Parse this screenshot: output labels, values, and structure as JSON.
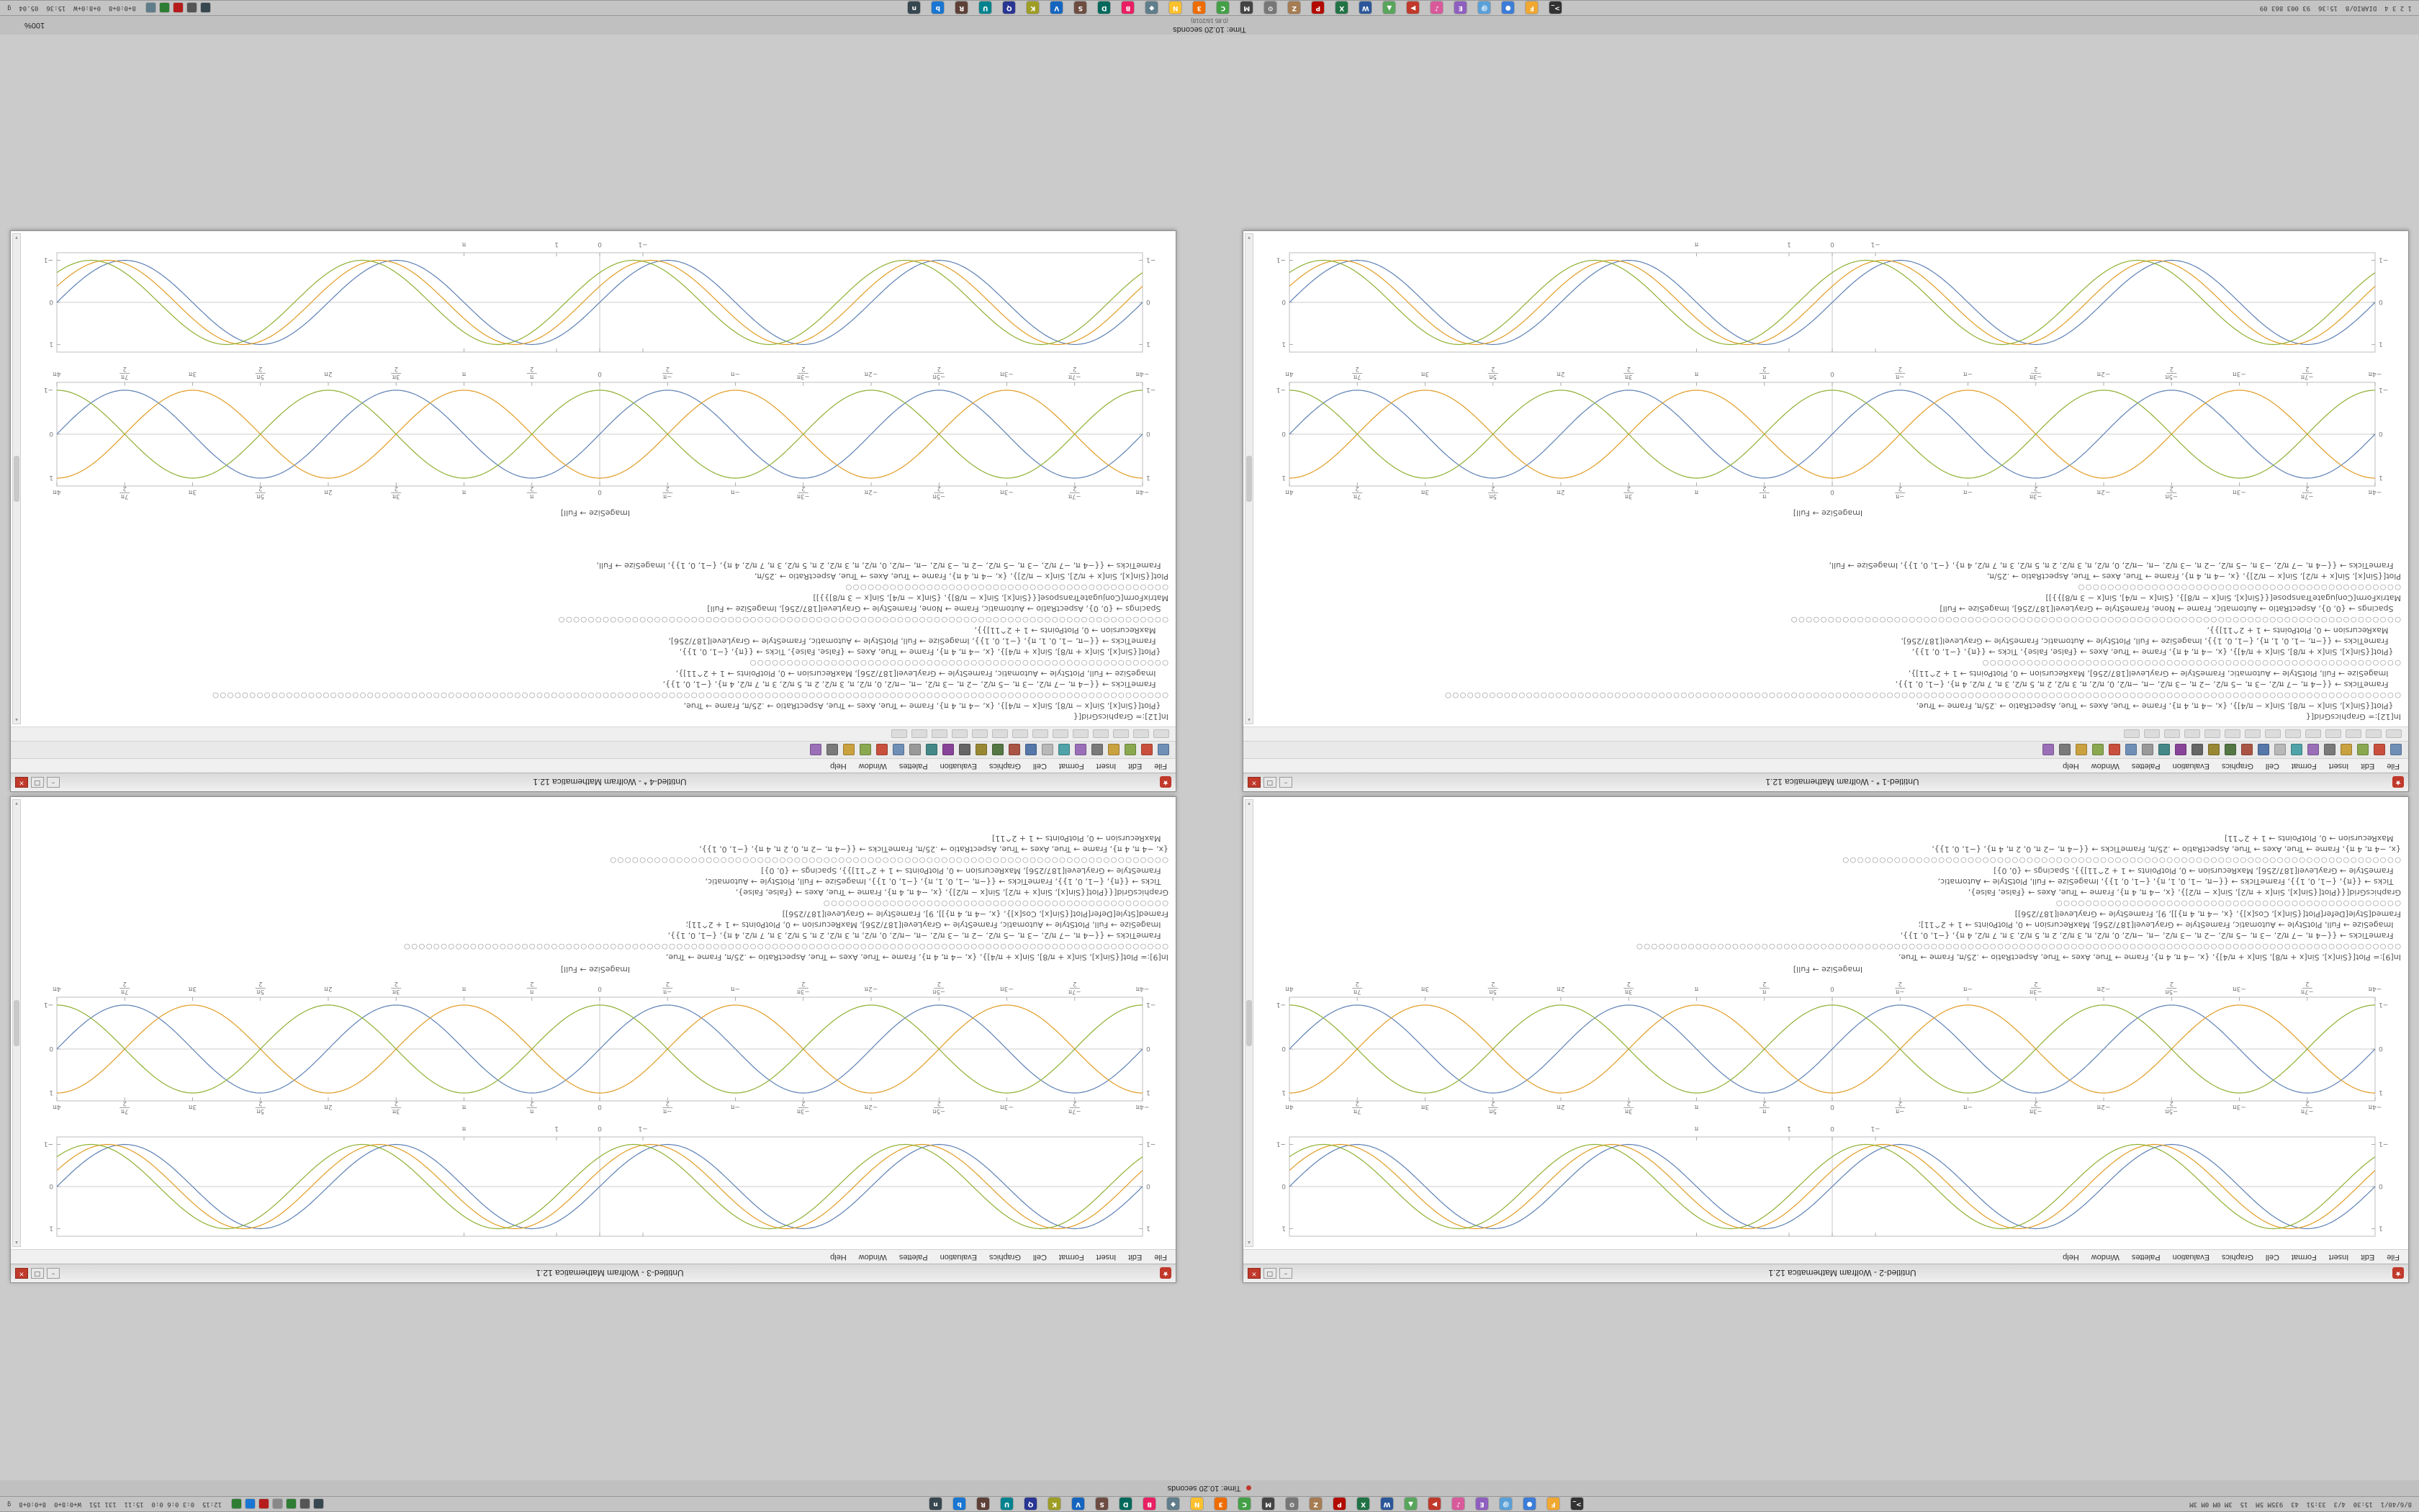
{
  "colors": {
    "accent_red": "#c0392b",
    "frame": "#bdbdbd",
    "plot_series": [
      "#5e81b5",
      "#e19c24",
      "#8fb032"
    ]
  },
  "strip_upper": {
    "label": "Time: 10.20 seconds"
  },
  "strip_lower": {
    "label": "Time: 10.20 seconds",
    "sub": "(0.85 16/2018)",
    "zoom": "100%"
  },
  "top_panel": {
    "left_status": "8/6/40/1  15:30  4/3  33:51  43  935M 5M  15  3M 0M 0M 3M",
    "right_status": "12:15  0:3 0:6 0:0  15:11  131 151  W+0:8+0  8+0:0+8  g",
    "tray": [
      {
        "name": "network",
        "color": "#37474f"
      },
      {
        "name": "volume",
        "color": "#555555"
      },
      {
        "name": "battery",
        "color": "#2e7d32"
      },
      {
        "name": "clipboard",
        "color": "#888888"
      },
      {
        "name": "updates",
        "color": "#b71c1c"
      },
      {
        "name": "bluetooth",
        "color": "#1976d2"
      },
      {
        "name": "shield",
        "color": "#2e7d32"
      }
    ]
  },
  "bottom_panel": {
    "left_status": "1 2 3 4  DIARIO/8  15:36  93 003 863 09",
    "right_status": "8+0:0+8  0+8:0+W  15:36  05.04  g",
    "tray": [
      {
        "name": "network",
        "color": "#37474f"
      },
      {
        "name": "volume",
        "color": "#555555"
      },
      {
        "name": "updates",
        "color": "#b71c1c"
      },
      {
        "name": "battery",
        "color": "#2e7d32"
      },
      {
        "name": "clock-applet",
        "color": "#607d8b"
      }
    ]
  },
  "panel_icons": [
    {
      "name": "terminal",
      "color": "#333333",
      "glyph": ">_"
    },
    {
      "name": "files",
      "color": "#f0a830",
      "glyph": "F"
    },
    {
      "name": "browser",
      "color": "#3b7dd8",
      "glyph": "●"
    },
    {
      "name": "mail",
      "color": "#5aa0d8",
      "glyph": "@"
    },
    {
      "name": "editor",
      "color": "#8f5fbf",
      "glyph": "E"
    },
    {
      "name": "music",
      "color": "#d85a9b",
      "glyph": "♪"
    },
    {
      "name": "video",
      "color": "#c0392b",
      "glyph": "▶"
    },
    {
      "name": "image-viewer",
      "color": "#58a55c",
      "glyph": "▲"
    },
    {
      "name": "writer",
      "color": "#2b579a",
      "glyph": "W"
    },
    {
      "name": "calc",
      "color": "#217346",
      "glyph": "X"
    },
    {
      "name": "pdf",
      "color": "#b30b00",
      "glyph": "P"
    },
    {
      "name": "archive",
      "color": "#a67c52",
      "glyph": "Z"
    },
    {
      "name": "settings",
      "color": "#777777",
      "glyph": "⚙"
    },
    {
      "name": "monitor",
      "color": "#444444",
      "glyph": "M"
    },
    {
      "name": "chat",
      "color": "#43a047",
      "glyph": "C"
    },
    {
      "name": "calendar",
      "color": "#ef6c00",
      "glyph": "3"
    },
    {
      "name": "notes",
      "color": "#fbc02d",
      "glyph": "N"
    },
    {
      "name": "camera",
      "color": "#607d8b",
      "glyph": "◆"
    },
    {
      "name": "paint",
      "color": "#e91e63",
      "glyph": "B"
    },
    {
      "name": "dev",
      "color": "#00695c",
      "glyph": "D"
    },
    {
      "name": "database",
      "color": "#6d4c41",
      "glyph": "S"
    },
    {
      "name": "vpn",
      "color": "#1565c0",
      "glyph": "V"
    },
    {
      "name": "clipboard",
      "color": "#9e9d24",
      "glyph": "K"
    },
    {
      "name": "search",
      "color": "#283593",
      "glyph": "Q"
    },
    {
      "name": "update",
      "color": "#00838f",
      "glyph": "U"
    },
    {
      "name": "printer",
      "color": "#5d4037",
      "glyph": "R"
    },
    {
      "name": "bluetooth",
      "color": "#1976d2",
      "glyph": "b"
    },
    {
      "name": "network-tool",
      "color": "#37474f",
      "glyph": "n"
    }
  ],
  "menu": {
    "items": [
      "File",
      "Edit",
      "Insert",
      "Format",
      "Cell",
      "Graphics",
      "Evaluation",
      "Palettes",
      "Window",
      "Help"
    ]
  },
  "window_buttons": {
    "min": "–",
    "max": "□",
    "close": "×",
    "spikey": "★"
  },
  "toolbar": {
    "icons": [
      "new",
      "open",
      "save",
      "print",
      "cut",
      "copy",
      "paste",
      "undo",
      "redo",
      "evaluate",
      "abort",
      "input-style",
      "text-style",
      "bold",
      "italic",
      "subscript",
      "superscript",
      "color",
      "zoom-in",
      "zoom-out",
      "palettes",
      "help"
    ]
  },
  "formatbar": {
    "icons": [
      "cell-style",
      "font",
      "size",
      "face",
      "align-left",
      "align-center",
      "align-right",
      "frame",
      "background",
      "spelling",
      "magnify",
      "drawing",
      "graphics",
      "slideshow"
    ]
  },
  "captions": {
    "image_size": "ImageSize → Full]"
  },
  "windows": [
    {
      "title": "Untitled-2 - Wolfram Mathematica 12.1",
      "row": 0,
      "col": 0,
      "chrome": "plain",
      "code": "code_b",
      "parts": [
        "plot1",
        "plot2",
        "caption",
        "code",
        "grow"
      ]
    },
    {
      "title": "Untitled-3 - Wolfram Mathematica 12.1",
      "row": 0,
      "col": 1,
      "chrome": "plain",
      "code": "code_b",
      "parts": [
        "plot1",
        "plot2",
        "caption",
        "code",
        "grow"
      ]
    },
    {
      "title": "Untitled-1 * - Wolfram Mathematica 12.1",
      "row": 1,
      "col": 0,
      "chrome": "full",
      "code": "code_a",
      "parts": [
        "code",
        "grow",
        "caption",
        "plot2",
        "plot1"
      ]
    },
    {
      "title": "Untitled-4 * - Wolfram Mathematica 12.1",
      "row": 1,
      "col": 1,
      "chrome": "full",
      "code": "code_a",
      "parts": [
        "code",
        "grow",
        "caption",
        "plot2",
        "plot1"
      ]
    }
  ],
  "code_blocks": {
    "code_a": [
      "In[12]:= GraphicsGrid[{",
      "   {Plot[{Sin[x], Sin[x − π/8], Sin[x − π/4]}, {x, −4 π, 4 π}, Frame → True, Axes → True, AspectRatio → .25/π, Frame → True,",
      "○○○○○○○○○○○○○○○○○○○○○○○○○○○○○○○○○○○○○○○○○○○○○○○○○○○○○○○○○○○○○○○○○○○○○○○○○○○○○○○○○○○○○○○○○○○○○○○○○○○○○○○○○○○○○○○○○○○○○○○○○○○○○○○○○○",
      "     FrameTicks → {{−4 π, −7 π/2, −3 π, −5 π/2, −2 π, −3 π/2, −π, −π/2, 0, π/2, π, 3 π/2, 2 π, 5 π/2, 3 π, 7 π/2, 4 π}, {−1, 0, 1}},",
      "     ImageSize → Full, PlotStyle → Automatic, FrameStyle → GrayLevel[187/256], MaxRecursion → 0, PlotPoints → 1 + 2^11]},",
      "○○○○○○○○○○○○○○○○○○○○○○○○○○○○○○○○○○○○○○○○○○○○○○○○○○○○○○○○○",
      "   {Plot[{Sin[x], Sin[x + π/8], Sin[x + π/4]}, {x, −4 π, 4 π}, Frame → True, Axes → {False, False}, Ticks → {{π}, {−1, 0, 1}},",
      "     FrameTicks → {{−π, −1, 0, 1, π}, {−1, 0, 1}}, ImageSize → Full, PlotStyle → Automatic, FrameStyle → GrayLevel[187/256],",
      "     MaxRecursion → 0, PlotPoints → 1 + 2^11]}},",
      "○○○○○○○○○○○○○○○○○○○○○○○○○○○○○○○○○○○○○○○○○○○○○○○○○○○○○○○○○○○○○○○○○○○○○○○○○○○○○○○○○○○",
      "   Spacings → {0, 0}, AspectRatio → Automatic, Frame → None, FrameStyle → GrayLevel[187/256], ImageSize → Full]",
      "MatrixForm[ConjugateTranspose[{{Sin[x], Sin[x − π/8]}, {Sin[x − π/4], Sin[x − 3 π/8]}}]]",
      "○○○○○○○○○○○○○○○○○○○○○○○○○○○○○○○○○○○○○○○○○○○○",
      "Plot[{Sin[x], Sin[x + π/2], Sin[x − π/2]}, {x, −4 π, 4 π}, Frame → True, Axes → True, AspectRatio → .25/π,",
      "   FrameTicks → {{−4 π, −7 π/2, −3 π, −5 π/2, −2 π, −3 π/2, −π, −π/2, 0, π/2, π, 3 π/2, 2 π, 5 π/2, 3 π, 7 π/2, 4 π}, {−1, 0, 1}}, ImageSize → Full,"
    ],
    "code_b": [
      "In[9]:= Plot[{Sin[x], Sin[x + π/8], Sin[x + π/4]}, {x, −4 π, 4 π}, Frame → True, Axes → True, AspectRatio → .25/π, Frame → True,",
      "○○○○○○○○○○○○○○○○○○○○○○○○○○○○○○○○○○○○○○○○○○○○○○○○○○○○○○○○○○○○○○○○○○○○○○○○○○○○○○○○○○○○○○○○○○○○○○○○○○○○○○○○",
      "   FrameTicks → {{−4 π, −7 π/2, −3 π, −5 π/2, −2 π, −3 π/2, −π, −π/2, 0, π/2, π, 3 π/2, 2 π, 5 π/2, 3 π, 7 π/2, 4 π}, {−1, 0, 1}},",
      "   ImageSize → Full, PlotStyle → Automatic, FrameStyle → GrayLevel[187/256], MaxRecursion → 0, PlotPoints → 1 + 2^11];",
      "Framed[Style[Defer[Plot[{Sin[x], Cos[x]}, {x, −4 π, 4 π}]], 9], FrameStyle → GrayLevel[187/256]]",
      "○○○○○○○○○○○○○○○○○○○○○○○○○○○○○○○○○○○○○○○○○○○○○○○",
      "GraphicsGrid[{{Plot[{Sin[x], Sin[x + π/2], Sin[x − π/2]}, {x, −4 π, 4 π}, Frame → True, Axes → {False, False},",
      "   Ticks → {{π}, {−1, 0, 1}}, FrameTicks → {{−π, −1, 0, 1, π}, {−1, 0, 1}}, ImageSize → Full, PlotStyle → Automatic,",
      "   FrameStyle → GrayLevel[187/256], MaxRecursion → 0, PlotPoints → 1 + 2^11]}}, Spacings → {0, 0}]",
      "○○○○○○○○○○○○○○○○○○○○○○○○○○○○○○○○○○○○○○○○○○○○○○○○○○○○○○○○○○○○○○○○○○○○○○○○○○○○",
      "{x, −4 π, 4 π}, Frame → True, Axes → True, AspectRatio → .25/π, FrameTicks → {{−4 π, −2 π, 0, 2 π, 4 π}, {−1, 0, 1}},",
      "   MaxRecursion → 0, PlotPoints → 1 + 2^11]"
    ]
  },
  "chart_data": [
    {
      "type": "line",
      "name": "wide-sine-plot",
      "title": "",
      "x_range": [
        -12.566,
        12.566
      ],
      "ylim": [
        -1,
        1
      ],
      "series": [
        {
          "name": "Sin[x]",
          "phase": 0
        },
        {
          "name": "Sin[x − π/8]",
          "phase": -0.3927
        },
        {
          "name": "Sin[x − π/4]",
          "phase": -0.7854
        }
      ],
      "x_tick_vals": [
        -1,
        0,
        1,
        3.1416
      ],
      "x_tick_labels": [
        "−1",
        "0",
        "1",
        "π"
      ],
      "y_tick_vals": [
        -1,
        0,
        1
      ],
      "y_tick_labels": [
        "−1",
        "0",
        "1"
      ],
      "frame": true,
      "axes": true,
      "top_labels": false,
      "grid": false,
      "legend": "none"
    },
    {
      "type": "line",
      "name": "braided-sine-plot",
      "title": "",
      "x_range": [
        -12.566,
        12.566
      ],
      "ylim": [
        -1,
        1
      ],
      "series": [
        {
          "name": "Sin[x]",
          "phase": 0
        },
        {
          "name": "Sin[x + π/2]",
          "phase": 1.5708
        },
        {
          "name": "Sin[x − π/2]",
          "phase": -1.5708
        }
      ],
      "x_tick_vals": [
        -12.566,
        -10.996,
        -9.4248,
        -7.854,
        -6.2832,
        -4.7124,
        -3.1416,
        -1.5708,
        0,
        1.5708,
        3.1416,
        4.7124,
        6.2832,
        7.854,
        9.4248,
        10.996,
        12.566
      ],
      "x_tick_labels": [
        "−4π",
        "−7π/2",
        "−3π",
        "−5π/2",
        "−2π",
        "−3π/2",
        "−π",
        "−π/2",
        "0",
        "π/2",
        "π",
        "3π/2",
        "2π",
        "5π/2",
        "3π",
        "7π/2",
        "4π"
      ],
      "y_tick_vals": [
        -1,
        0,
        1
      ],
      "y_tick_labels": [
        "−1",
        "0",
        "1"
      ],
      "frame": true,
      "axes": true,
      "top_labels": true,
      "grid": false,
      "legend": "none"
    }
  ]
}
